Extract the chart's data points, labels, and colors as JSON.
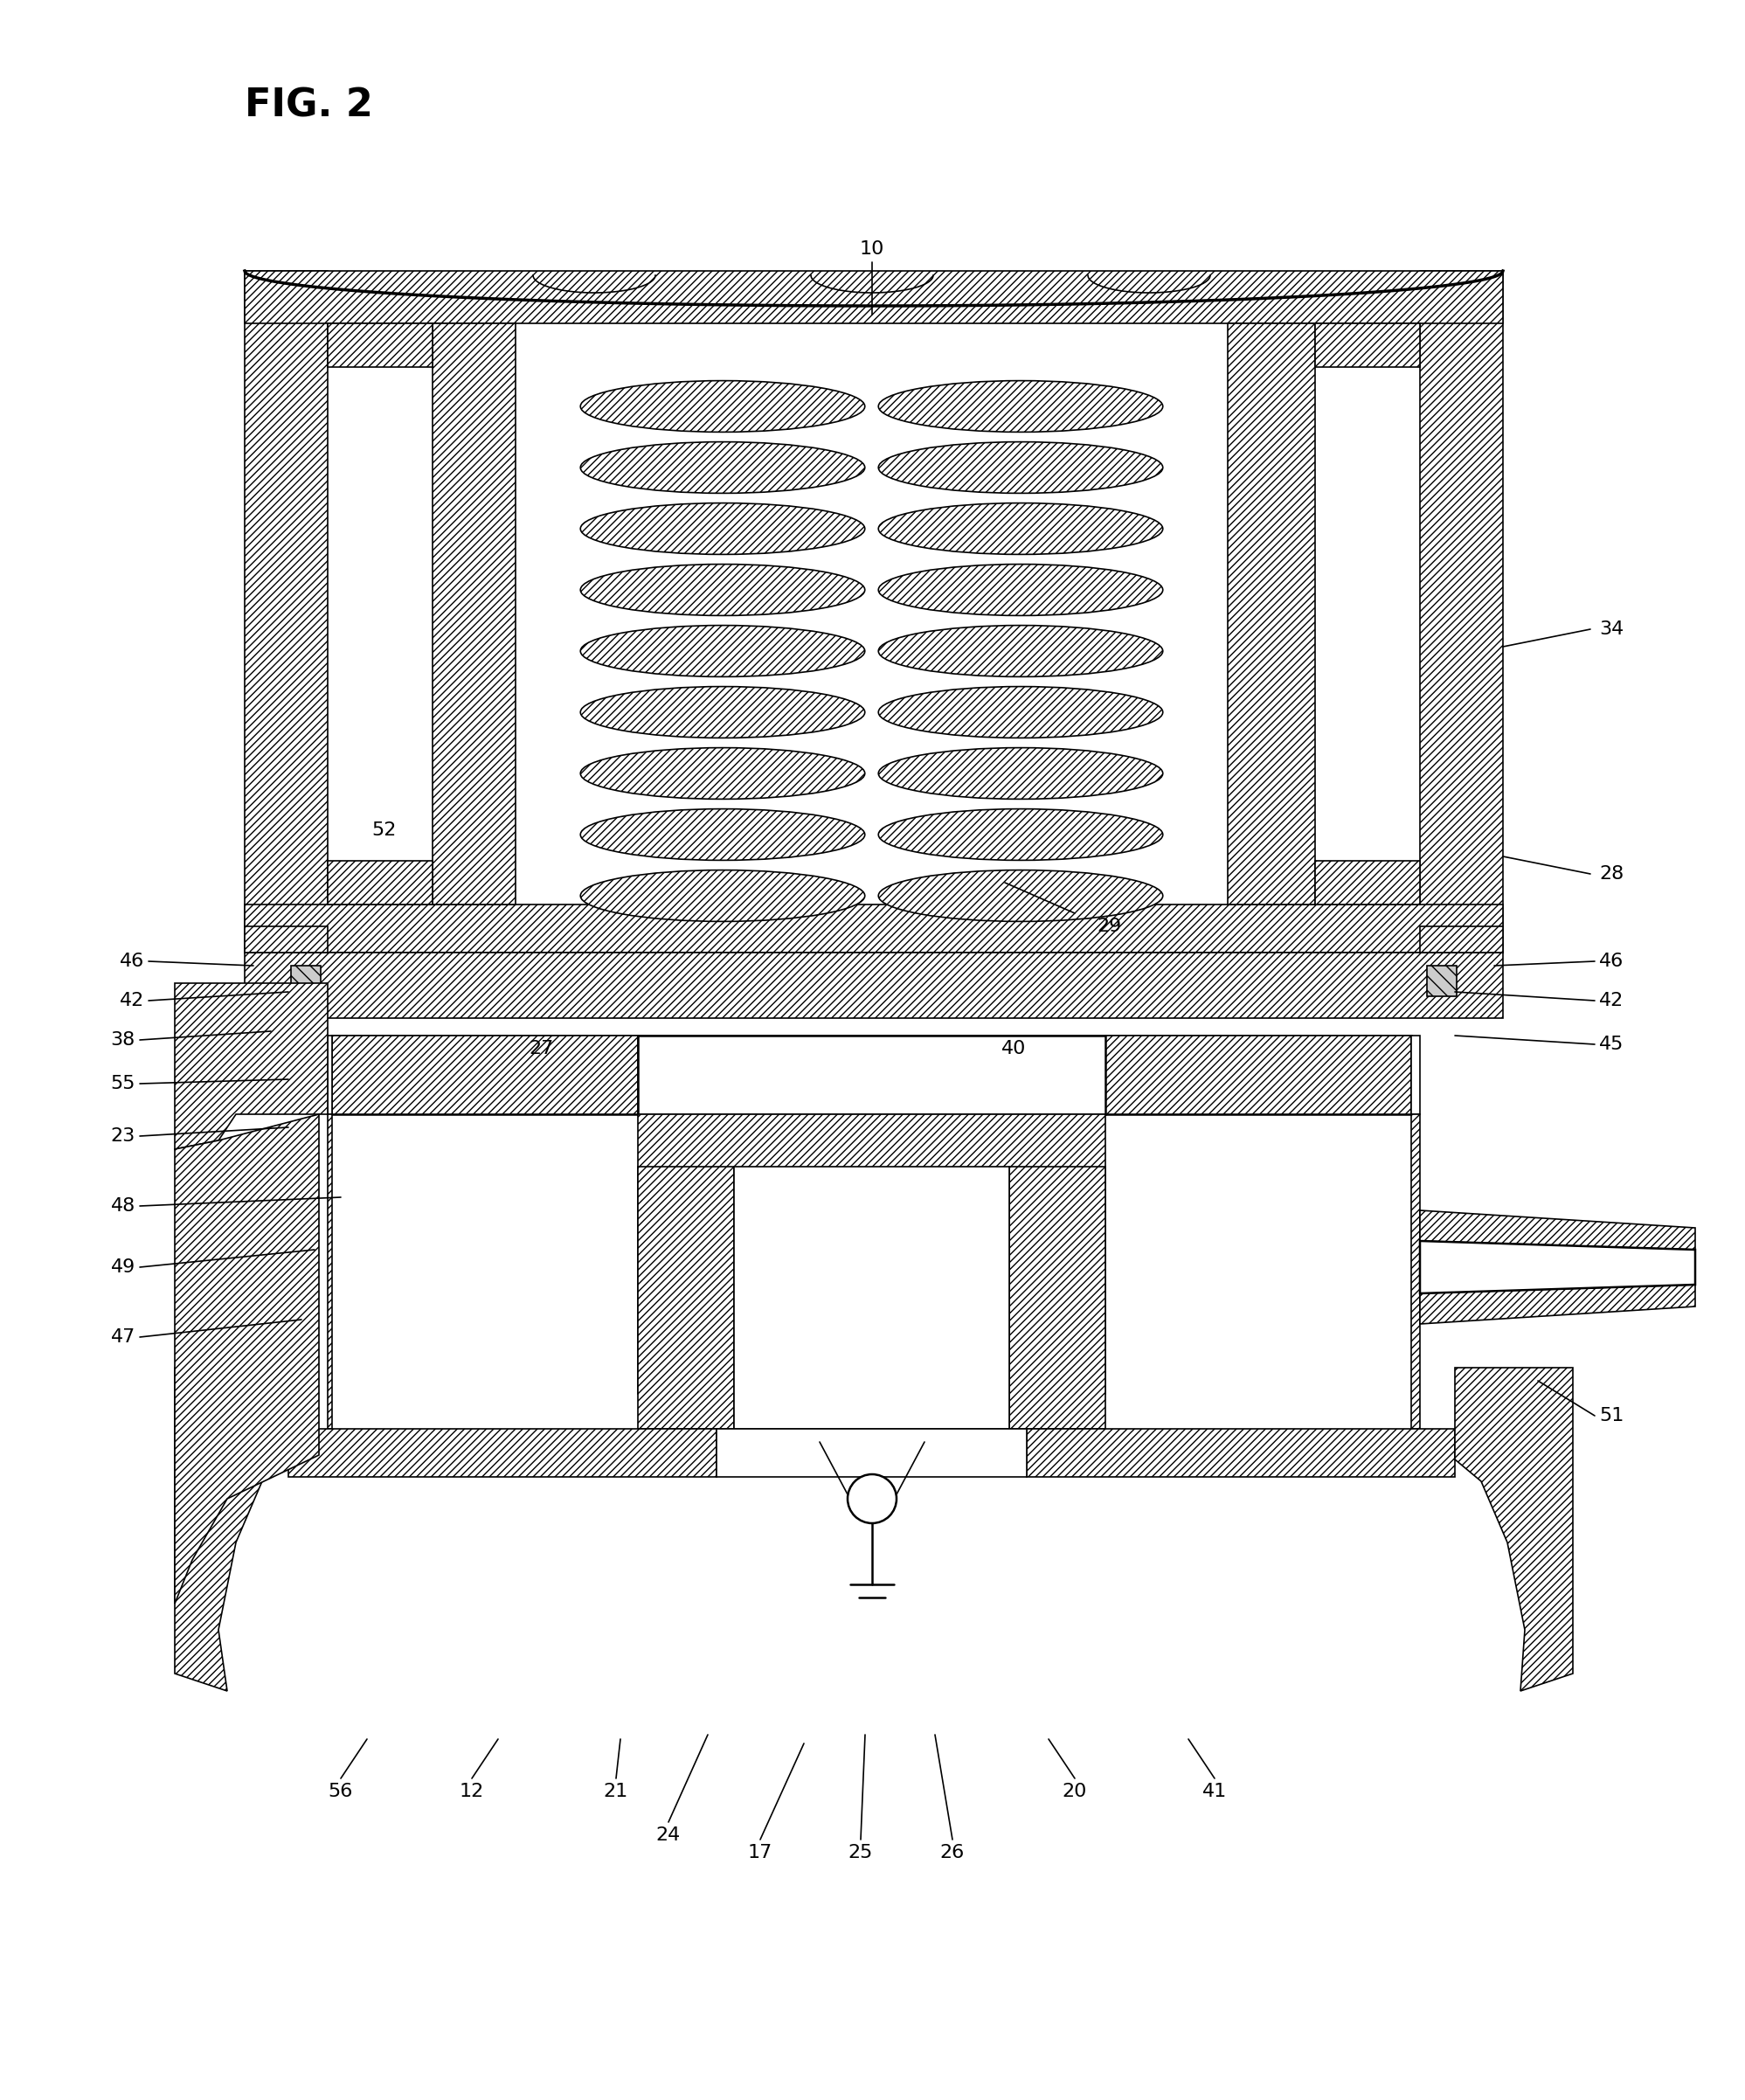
{
  "title": "FIG. 2",
  "background_color": "#ffffff",
  "line_color": "#000000",
  "lw": 1.8,
  "lw_thin": 1.2,
  "lw_thick": 2.5,
  "label_fontsize": 16,
  "title_fontsize": 32
}
